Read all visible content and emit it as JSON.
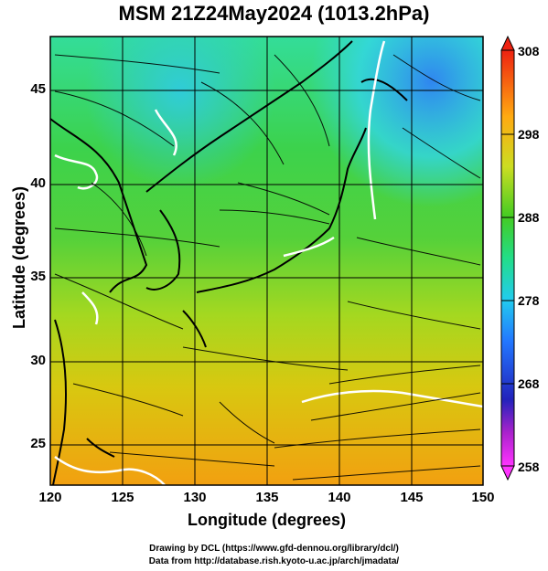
{
  "title": "MSM 21Z24May2024 (1013.2hPa)",
  "axes": {
    "xlabel": "Longitude (degrees)",
    "ylabel": "Latitude  (degrees)",
    "xticks": [
      "120",
      "125",
      "130",
      "135",
      "140",
      "145",
      "150"
    ],
    "yticks": [
      "45",
      "40",
      "35",
      "30",
      "25"
    ]
  },
  "colorbar": {
    "ticks": [
      "308",
      "298",
      "288",
      "278",
      "268",
      "258"
    ],
    "min": 258,
    "max": 308
  },
  "credits": {
    "line1": "Drawing by DCL (https://www.gfd-dennou.org/library/dcl/)",
    "line2": "Data from http://database.rish.kyoto-u.ac.jp/arch/jmadata/"
  },
  "map_data": {
    "lon_range": [
      120,
      150
    ],
    "lat_range": [
      23,
      48
    ],
    "variable": "temperature (K) with surface wind streamlines"
  }
}
